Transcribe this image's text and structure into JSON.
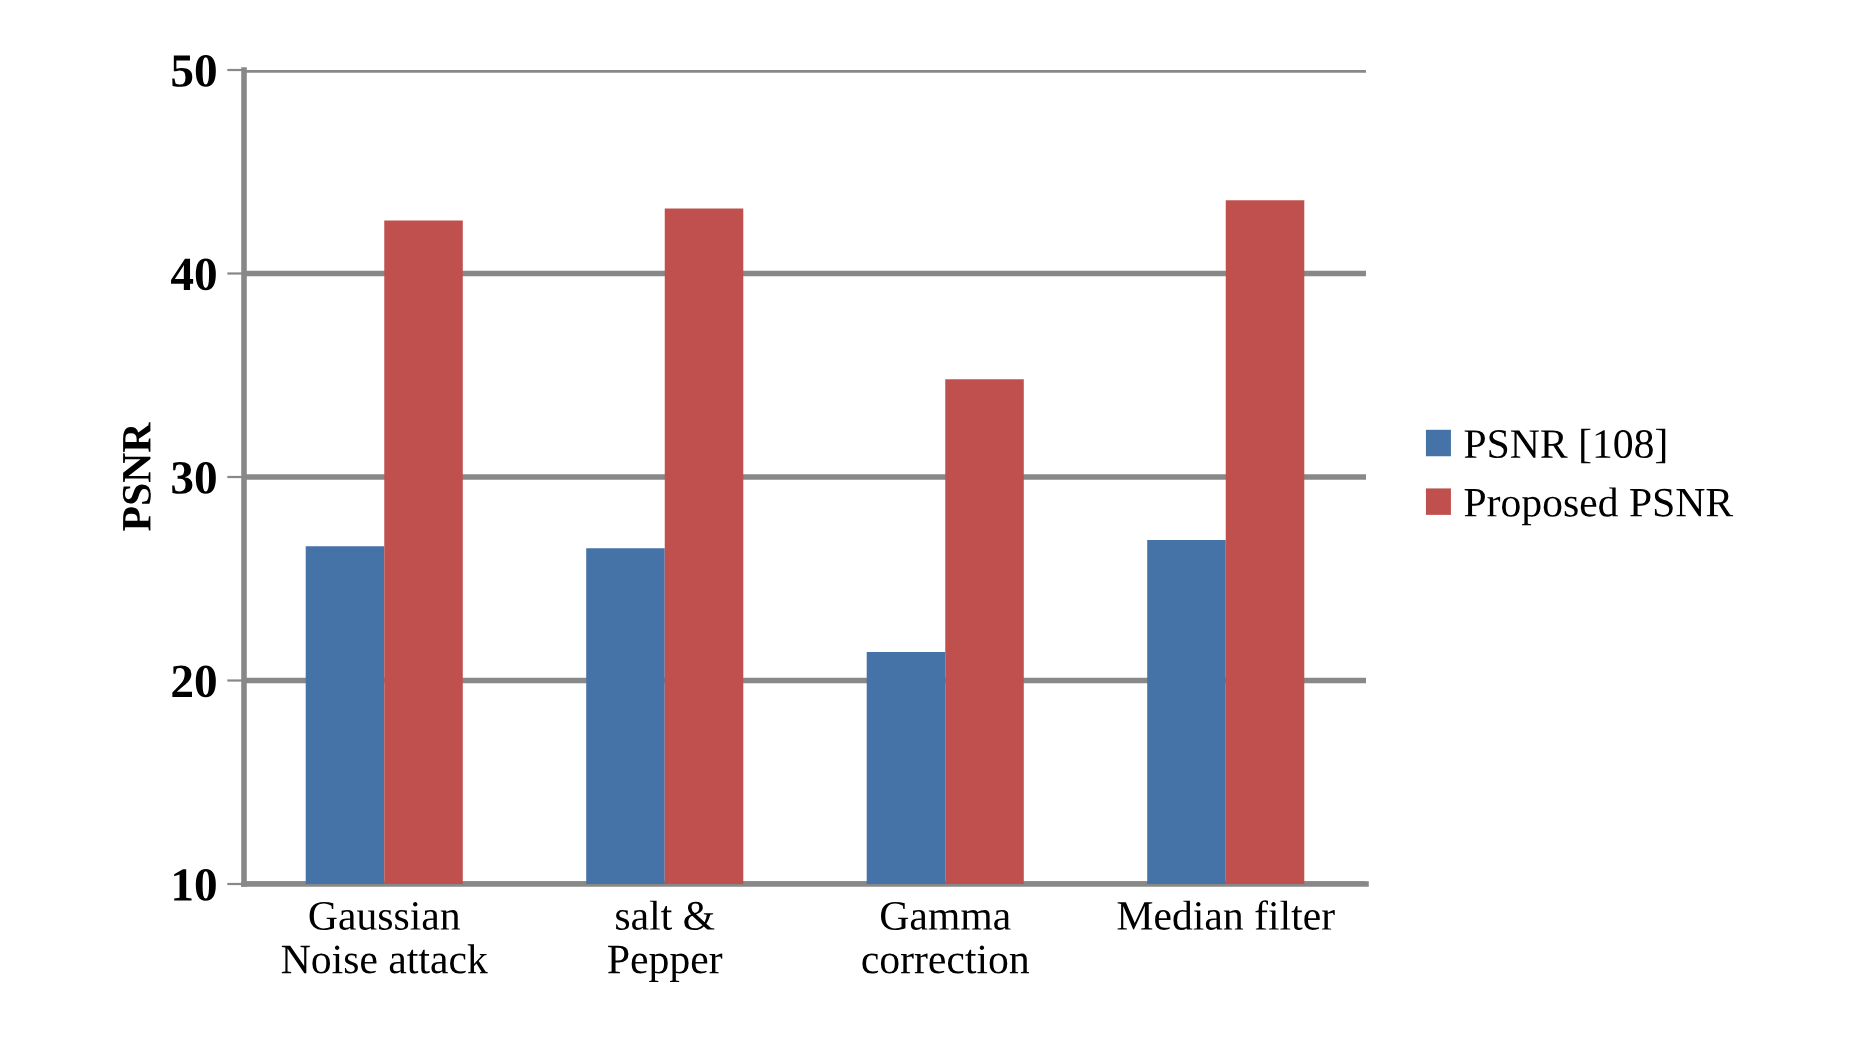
{
  "chart_data": {
    "type": "bar",
    "ylabel": "PSNR",
    "categories": [
      "Gaussian\nNoise attack",
      "salt &\nPepper",
      "Gamma\ncorrection",
      "Median filter"
    ],
    "series": [
      {
        "name": "PSNR [108]",
        "color": "#4572a7",
        "values": [
          26.6,
          26.5,
          21.4,
          26.9
        ]
      },
      {
        "name": "Proposed PSNR",
        "color": "#c0504d",
        "values": [
          42.6,
          43.2,
          34.8,
          43.6
        ]
      }
    ],
    "ylim": [
      10,
      50
    ],
    "yticks": [
      10,
      20,
      30,
      40,
      50
    ],
    "grid": "y",
    "legend": "right"
  }
}
